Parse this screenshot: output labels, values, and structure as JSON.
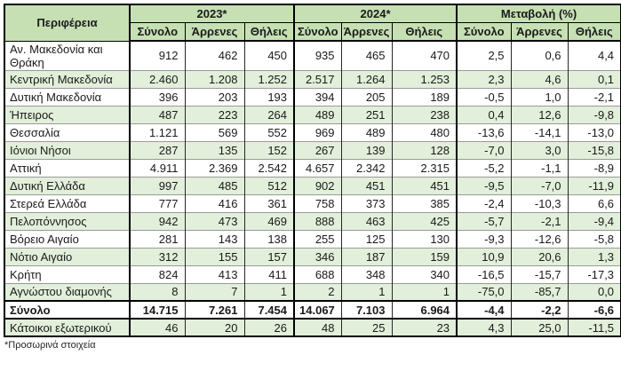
{
  "chart_data": {
    "type": "table",
    "region_column_header": "Περιφέρεια",
    "column_groups": [
      {
        "label": "2023*",
        "subcolumns": [
          "Σύνολο",
          "Άρρενες",
          "Θήλεις"
        ]
      },
      {
        "label": "2024*",
        "subcolumns": [
          "Σύνολο",
          "Άρρενες",
          "Θήλεις"
        ]
      },
      {
        "label": "Μεταβολή (%)",
        "subcolumns": [
          "Σύνολο",
          "Άρρενες",
          "Θήλεις"
        ]
      }
    ],
    "rows": [
      {
        "region": "Αν. Μακεδονία και Θράκη",
        "values": [
          "912",
          "462",
          "450",
          "935",
          "465",
          "470",
          "2,5",
          "0,6",
          "4,4"
        ],
        "bold": false
      },
      {
        "region": "Κεντρική Μακεδονία",
        "values": [
          "2.460",
          "1.208",
          "1.252",
          "2.517",
          "1.264",
          "1.253",
          "2,3",
          "4,6",
          "0,1"
        ],
        "bold": false
      },
      {
        "region": "Δυτική Μακεδονία",
        "values": [
          "396",
          "203",
          "193",
          "394",
          "205",
          "189",
          "-0,5",
          "1,0",
          "-2,1"
        ],
        "bold": false
      },
      {
        "region": "Ήπειρος",
        "values": [
          "487",
          "223",
          "264",
          "489",
          "251",
          "238",
          "0,4",
          "12,6",
          "-9,8"
        ],
        "bold": false
      },
      {
        "region": "Θεσσαλία",
        "values": [
          "1.121",
          "569",
          "552",
          "969",
          "489",
          "480",
          "-13,6",
          "-14,1",
          "-13,0"
        ],
        "bold": false
      },
      {
        "region": "Ιόνιοι Νήσοι",
        "values": [
          "287",
          "135",
          "152",
          "267",
          "139",
          "128",
          "-7,0",
          "3,0",
          "-15,8"
        ],
        "bold": false
      },
      {
        "region": "Αττική",
        "values": [
          "4.911",
          "2.369",
          "2.542",
          "4.657",
          "2.342",
          "2.315",
          "-5,2",
          "-1,1",
          "-8,9"
        ],
        "bold": false
      },
      {
        "region": "Δυτική Ελλάδα",
        "values": [
          "997",
          "485",
          "512",
          "902",
          "451",
          "451",
          "-9,5",
          "-7,0",
          "-11,9"
        ],
        "bold": false
      },
      {
        "region": "Στερεά Ελλάδα",
        "values": [
          "777",
          "416",
          "361",
          "758",
          "373",
          "385",
          "-2,4",
          "-10,3",
          "6,6"
        ],
        "bold": false
      },
      {
        "region": "Πελοπόννησος",
        "values": [
          "942",
          "473",
          "469",
          "888",
          "463",
          "425",
          "-5,7",
          "-2,1",
          "-9,4"
        ],
        "bold": false
      },
      {
        "region": "Βόρειο Αιγαίο",
        "values": [
          "281",
          "143",
          "138",
          "255",
          "125",
          "130",
          "-9,3",
          "-12,6",
          "-5,8"
        ],
        "bold": false
      },
      {
        "region": "Νότιο Αιγαίο",
        "values": [
          "312",
          "155",
          "157",
          "346",
          "187",
          "159",
          "10,9",
          "20,6",
          "1,3"
        ],
        "bold": false
      },
      {
        "region": "Κρήτη",
        "values": [
          "824",
          "413",
          "411",
          "688",
          "348",
          "340",
          "-16,5",
          "-15,7",
          "-17,3"
        ],
        "bold": false
      },
      {
        "region": "Αγνώστου διαμονής",
        "values": [
          "8",
          "7",
          "1",
          "2",
          "1",
          "1",
          "-75,0",
          "-85,7",
          "0,0"
        ],
        "bold": false
      },
      {
        "region": "Σύνολο",
        "values": [
          "14.715",
          "7.261",
          "7.454",
          "14.067",
          "7.103",
          "6.964",
          "-4,4",
          "-2,2",
          "-6,6"
        ],
        "bold": true
      },
      {
        "region": "Κάτοικοι εξωτερικού",
        "values": [
          "46",
          "20",
          "26",
          "48",
          "25",
          "23",
          "4,3",
          "25,0",
          "-11,5"
        ],
        "bold": false
      }
    ],
    "footnote": "*Προσωρινά στοιχεία"
  },
  "colors": {
    "header_bg": "#C6E0B4",
    "stripe_bg": "#E2EFDA",
    "border_dark": "#000000",
    "row_divider": "#999999",
    "text": "#1a1a1a"
  }
}
